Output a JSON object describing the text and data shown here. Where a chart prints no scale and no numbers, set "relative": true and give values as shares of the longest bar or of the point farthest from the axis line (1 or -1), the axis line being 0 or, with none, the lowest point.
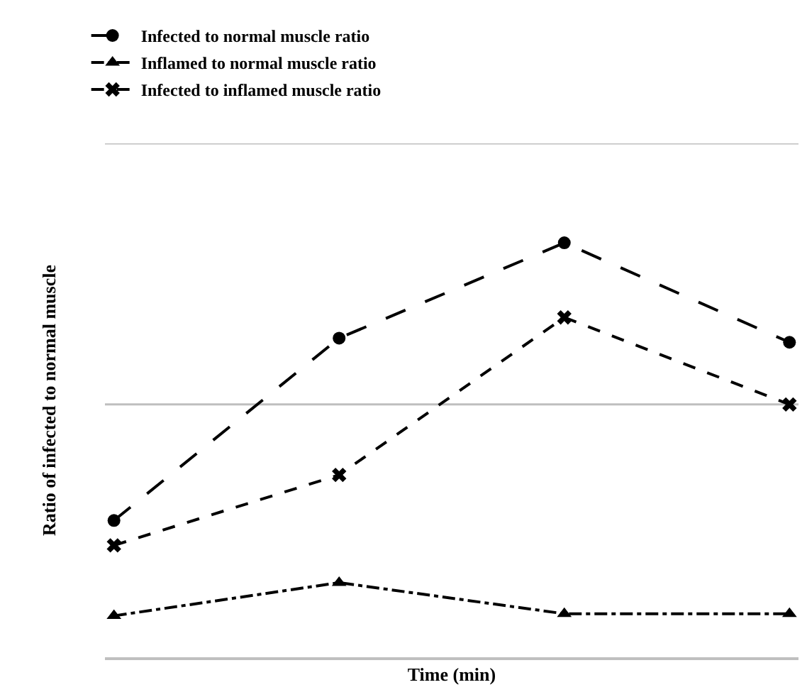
{
  "chart_data": {
    "type": "line",
    "relative": true,
    "xlabel": "Time (min)",
    "ylabel": "Ratio of infected to normal muscle",
    "categories": [
      null,
      null,
      null,
      null
    ],
    "series": [
      {
        "name": "Infected to normal muscle ratio",
        "color": "#000000",
        "marker": "circle",
        "line_style": "longdash",
        "values": [
          0.33,
          0.77,
          1,
          0.76
        ]
      },
      {
        "name": "Inflamed to normal muscle ratio",
        "color": "#000000",
        "marker": "triangle",
        "line_style": "dashdot",
        "values": [
          0.1,
          0.18,
          0.105,
          0.105
        ]
      },
      {
        "name": "Infected to inflamed muscle ratio",
        "color": "#000000",
        "marker": "cross",
        "line_style": "dashed",
        "values": [
          0.27,
          0.44,
          0.82,
          0.61
        ]
      }
    ],
    "ref_lines": [
      {
        "axis": "y",
        "value": 0.61,
        "color": "#bfbfbf"
      },
      {
        "axis": "y",
        "value": 1.24,
        "color": "#bfbfbf"
      }
    ],
    "legend": "top left"
  }
}
